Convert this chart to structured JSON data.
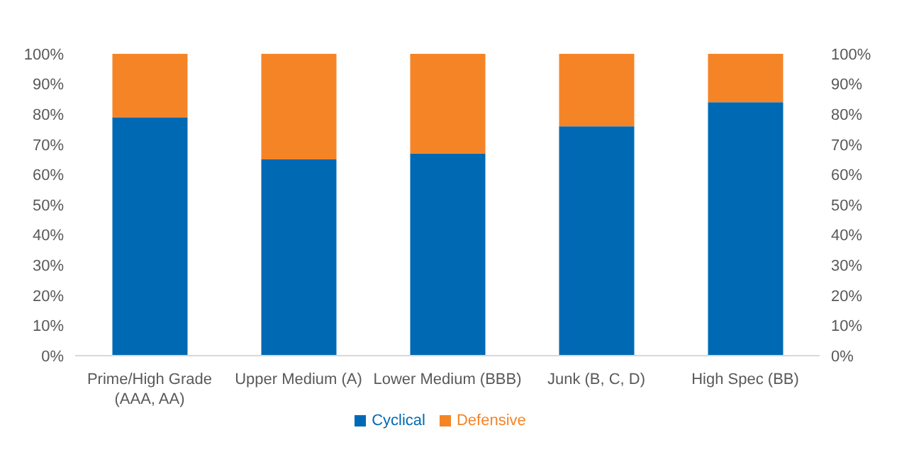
{
  "chart_data": {
    "type": "bar",
    "stacked": true,
    "categories": [
      "Prime/High Grade (AAA, AA)",
      "Upper Medium (A)",
      "Lower Medium (BBB)",
      "Junk (B, C, D)",
      "High Spec (BB)"
    ],
    "series": [
      {
        "name": "Cyclical",
        "color": "#0069b4",
        "values": [
          79,
          65,
          67,
          76,
          84
        ]
      },
      {
        "name": "Defensive",
        "color": "#f58426",
        "values": [
          21,
          35,
          33,
          24,
          16
        ]
      }
    ],
    "ylim": [
      0,
      100
    ],
    "yticks": [
      {
        "value": 0,
        "label": "0%"
      },
      {
        "value": 10,
        "label": "10%"
      },
      {
        "value": 20,
        "label": "20%"
      },
      {
        "value": 30,
        "label": "30%"
      },
      {
        "value": 40,
        "label": "40%"
      },
      {
        "value": 50,
        "label": "50%"
      },
      {
        "value": 60,
        "label": "60%"
      },
      {
        "value": 70,
        "label": "70%"
      },
      {
        "value": 80,
        "label": "80%"
      },
      {
        "value": 90,
        "label": "90%"
      },
      {
        "value": 100,
        "label": "100%"
      }
    ],
    "y2lim": [
      0,
      100
    ],
    "y2ticks": [
      {
        "value": 0,
        "label": "0%"
      },
      {
        "value": 10,
        "label": "10%"
      },
      {
        "value": 20,
        "label": "20%"
      },
      {
        "value": 30,
        "label": "30%"
      },
      {
        "value": 40,
        "label": "40%"
      },
      {
        "value": 50,
        "label": "50%"
      },
      {
        "value": 60,
        "label": "60%"
      },
      {
        "value": 70,
        "label": "70%"
      },
      {
        "value": 80,
        "label": "80%"
      },
      {
        "value": 90,
        "label": "90%"
      },
      {
        "value": 100,
        "label": "100%"
      }
    ],
    "grid": false,
    "legend": "bottom"
  }
}
